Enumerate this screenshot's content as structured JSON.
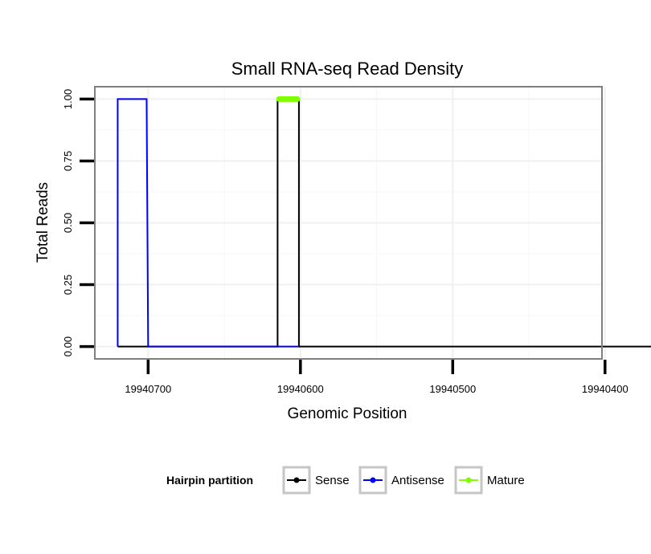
{
  "chart_data": {
    "type": "line",
    "title": "Small RNA-seq Read Density",
    "xlabel": "Genomic Position",
    "ylabel": "Total Reads",
    "x_reversed": true,
    "xlim": [
      19940402,
      19940735
    ],
    "ylim": [
      -0.05,
      1.05
    ],
    "x_ticks": [
      19940700,
      19940600,
      19940500,
      19940400
    ],
    "x_tick_labels": [
      "19940700",
      "19940600",
      "19940500",
      "19940400"
    ],
    "y_ticks": [
      0,
      0.25,
      0.5,
      0.75,
      1
    ],
    "y_tick_labels": [
      "0.00",
      "0.25",
      "0.50",
      "0.75",
      "1.00"
    ],
    "grid": true,
    "legend": {
      "title": "Hairpin partition",
      "position": "bottom",
      "entries": [
        {
          "name": "Sense",
          "color": "#000000"
        },
        {
          "name": "Antisense",
          "color": "#0000ff"
        },
        {
          "name": "Mature",
          "color": "#7fff00"
        }
      ]
    },
    "series": [
      {
        "name": "Sense",
        "color": "#000000",
        "x": [
          19940720,
          19940615,
          19940615,
          19940601,
          19940601,
          19940345
        ],
        "y": [
          0,
          0,
          1,
          1,
          0,
          0
        ]
      },
      {
        "name": "Antisense",
        "color": "#0000ff",
        "x": [
          19940720,
          19940720,
          19940701,
          19940700,
          19940615,
          19940601
        ],
        "y": [
          0,
          1,
          1,
          0,
          0,
          0
        ]
      },
      {
        "name": "Mature",
        "color": "#7fff00",
        "x": [
          19940614,
          19940602
        ],
        "y": [
          1,
          1
        ]
      }
    ]
  }
}
